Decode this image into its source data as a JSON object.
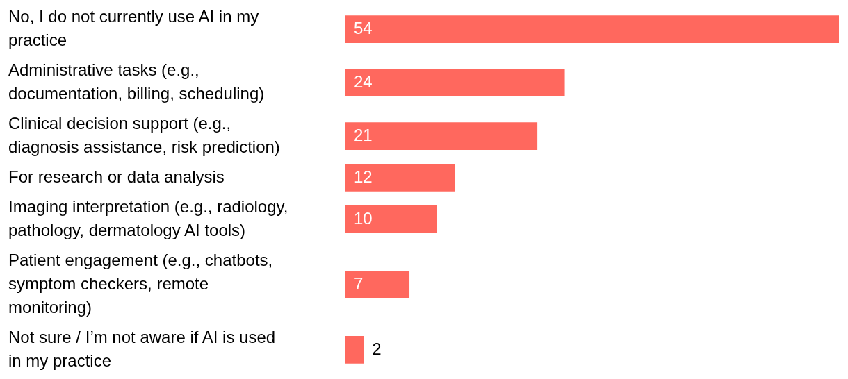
{
  "chart_data": {
    "type": "bar",
    "orientation": "horizontal",
    "data_labels": true,
    "color": "#ff685e",
    "categories": [
      "No, I do not currently use AI in my practice",
      "Administrative tasks (e.g., documentation, billing, scheduling)",
      "Clinical decision support (e.g., diagnosis assistance, risk prediction)",
      "For research or data analysis",
      "Imaging interpretation (e.g., radiology, pathology, dermatology AI tools)",
      "Patient engagement (e.g., chatbots, symptom checkers, remote monitoring)",
      "Not sure / I’m not aware if AI is used in my practice"
    ],
    "values": [
      54,
      24,
      21,
      12,
      10,
      7,
      2
    ]
  }
}
